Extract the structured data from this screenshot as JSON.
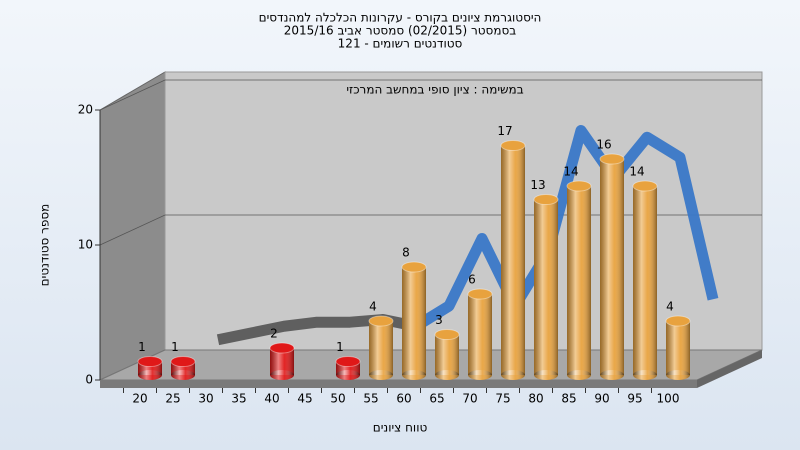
{
  "chart_data": {
    "type": "bar3d",
    "title": [
      "היסטוגרמת ציונים בקורס - עקרונות הכלכלה למהנדסים",
      "בסמסטר  (02/2015)  סמסטר אביב 2015/16",
      "סטודנטים רשומים - 121"
    ],
    "subtitle": "במשימה : ציון סופי במחשב המרכזי",
    "x_label": "טווח ציונים",
    "y_label": "מספר סטודנטים",
    "categories": [
      "20",
      "25",
      "30",
      "35",
      "40",
      "45",
      "50",
      "55",
      "60",
      "65",
      "70",
      "75",
      "80",
      "85",
      "90",
      "95",
      "100"
    ],
    "values": [
      1,
      1,
      0,
      0,
      2,
      0,
      1,
      4,
      8,
      3,
      6,
      17,
      13,
      14,
      16,
      14,
      4
    ],
    "bar_colors": [
      "#e01818",
      "#e01818",
      "#e01818",
      "#e01818",
      "#e01818",
      "#e01818",
      "#e01818",
      "#e8a23e",
      "#e8a23e",
      "#e8a23e",
      "#e8a23e",
      "#e8a23e",
      "#e8a23e",
      "#e8a23e",
      "#e8a23e",
      "#e8a23e",
      "#e8a23e"
    ],
    "trend": {
      "values": [
        null,
        1.5,
        2,
        2.5,
        2.8,
        2.8,
        3,
        2.5,
        4,
        9,
        4,
        8,
        17,
        13.5,
        16.5,
        15,
        4.5
      ],
      "colors": [
        "#5a5a5a",
        "#3a78c8"
      ],
      "split_index": 7
    },
    "ylim": [
      0,
      20
    ],
    "yticks": [
      0,
      10,
      20
    ],
    "grid": true
  }
}
